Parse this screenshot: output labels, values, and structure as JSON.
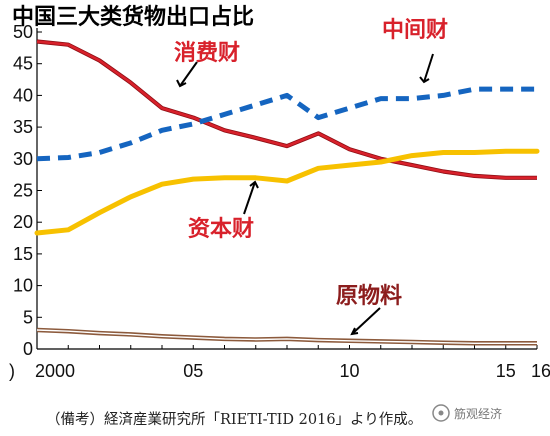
{
  "chart_data": {
    "type": "line",
    "title": "中国三大类货物出口占比",
    "x": [
      2000,
      2001,
      2002,
      2003,
      2004,
      2005,
      2006,
      2007,
      2008,
      2009,
      2010,
      2011,
      2012,
      2013,
      2014,
      2015,
      2016
    ],
    "x_tick_labels": [
      "2000",
      "05",
      "10",
      "15",
      "16"
    ],
    "x_tick_values": [
      2000,
      2005,
      2010,
      2015,
      2016
    ],
    "y_ticks": [
      0,
      5,
      10,
      15,
      20,
      25,
      30,
      35,
      40,
      45,
      50
    ],
    "ylim": [
      0,
      50
    ],
    "xlim": [
      2000,
      2016
    ],
    "xlabel": "",
    "ylabel": "",
    "grid": false,
    "left_axis_fragment": ")",
    "series": [
      {
        "name": "消费财",
        "color": "#d8212b",
        "style": "solid",
        "values": [
          48.5,
          48.0,
          45.5,
          42.0,
          38.0,
          36.5,
          34.5,
          33.3,
          32.0,
          34.0,
          31.5,
          30.0,
          29.0,
          28.0,
          27.3,
          27.0,
          27.0
        ]
      },
      {
        "name": "中间财",
        "color": "#1565c0",
        "style": "dashed",
        "values": [
          30.0,
          30.2,
          31.0,
          32.5,
          34.5,
          35.5,
          37.0,
          38.5,
          40.0,
          36.5,
          38.0,
          39.5,
          39.5,
          40.0,
          41.0,
          41.0,
          41.0
        ]
      },
      {
        "name": "资本财",
        "color": "#f7c100",
        "style": "solid",
        "values": [
          18.3,
          18.8,
          21.5,
          24.0,
          26.0,
          26.8,
          27.0,
          27.0,
          26.5,
          28.5,
          29.0,
          29.5,
          30.5,
          31.0,
          31.0,
          31.2,
          31.2
        ]
      },
      {
        "name": "原物料",
        "color": "#8c5a3c",
        "style": "double",
        "values": [
          3.0,
          2.8,
          2.5,
          2.3,
          2.0,
          1.8,
          1.6,
          1.5,
          1.6,
          1.4,
          1.3,
          1.2,
          1.1,
          1.0,
          0.9,
          0.9,
          0.9
        ]
      }
    ]
  },
  "annotations": [
    {
      "name": "label-consumer-goods",
      "text": "消费财",
      "color": "#d8212b"
    },
    {
      "name": "label-intermediate-goods",
      "text": "中间财",
      "color": "#d8212b"
    },
    {
      "name": "label-capital-goods",
      "text": "资本财",
      "color": "#d8212b"
    },
    {
      "name": "label-raw-materials",
      "text": "原物料",
      "color": "#8c1d1d"
    }
  ],
  "source_note": "（備考）経済産業研究所「RIETI-TID 2016」より作成。",
  "watermark": "筋观经济"
}
